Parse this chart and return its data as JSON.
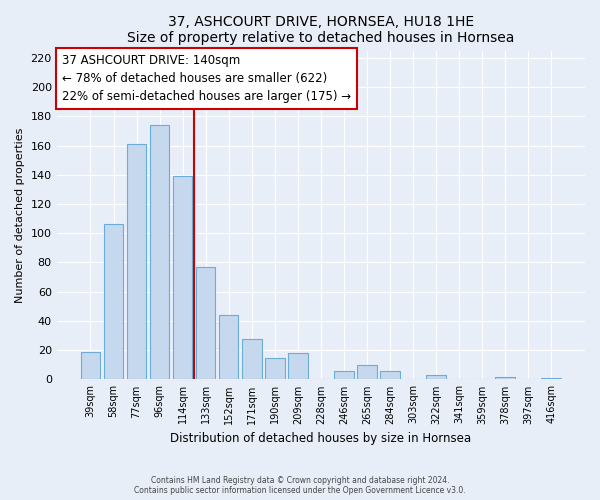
{
  "title": "37, ASHCOURT DRIVE, HORNSEA, HU18 1HE",
  "subtitle": "Size of property relative to detached houses in Hornsea",
  "xlabel": "Distribution of detached houses by size in Hornsea",
  "ylabel": "Number of detached properties",
  "bar_labels": [
    "39sqm",
    "58sqm",
    "77sqm",
    "96sqm",
    "114sqm",
    "133sqm",
    "152sqm",
    "171sqm",
    "190sqm",
    "209sqm",
    "228sqm",
    "246sqm",
    "265sqm",
    "284sqm",
    "303sqm",
    "322sqm",
    "341sqm",
    "359sqm",
    "378sqm",
    "397sqm",
    "416sqm"
  ],
  "bar_values": [
    19,
    106,
    161,
    174,
    139,
    77,
    44,
    28,
    15,
    18,
    0,
    6,
    10,
    6,
    0,
    3,
    0,
    0,
    2,
    0,
    1
  ],
  "bar_color": "#c5d8ed",
  "bar_edge_color": "#6aaed6",
  "ylim": [
    0,
    225
  ],
  "yticks": [
    0,
    20,
    40,
    60,
    80,
    100,
    120,
    140,
    160,
    180,
    200,
    220
  ],
  "annotation_title": "37 ASHCOURT DRIVE: 140sqm",
  "annotation_line1": "← 78% of detached houses are smaller (622)",
  "annotation_line2": "22% of semi-detached houses are larger (175) →",
  "vline_color": "#cc0000",
  "vline_x": 4.5,
  "footer1": "Contains HM Land Registry data © Crown copyright and database right 2024.",
  "footer2": "Contains public sector information licensed under the Open Government Licence v3.0.",
  "bg_color": "#e8eef8",
  "plot_bg_color": "#e8eef8"
}
